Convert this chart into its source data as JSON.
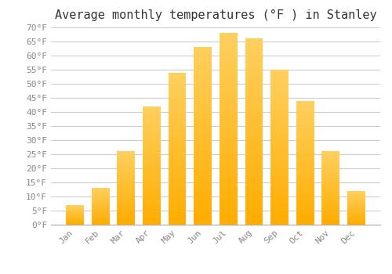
{
  "title": "Average monthly temperatures (°F ) in Stanley",
  "months": [
    "Jan",
    "Feb",
    "Mar",
    "Apr",
    "May",
    "Jun",
    "Jul",
    "Aug",
    "Sep",
    "Oct",
    "Nov",
    "Dec"
  ],
  "values": [
    7,
    13,
    26,
    42,
    54,
    63,
    68,
    66,
    55,
    44,
    26,
    12
  ],
  "bar_color": "#FFAD00",
  "bar_color_light": "#FFD060",
  "ylim": [
    0,
    70
  ],
  "yticks": [
    0,
    5,
    10,
    15,
    20,
    25,
    30,
    35,
    40,
    45,
    50,
    55,
    60,
    65,
    70
  ],
  "ytick_labels": [
    "0°F",
    "5°F",
    "10°F",
    "15°F",
    "20°F",
    "25°F",
    "30°F",
    "35°F",
    "40°F",
    "45°F",
    "50°F",
    "55°F",
    "60°F",
    "65°F",
    "70°F"
  ],
  "background_color": "#ffffff",
  "grid_color": "#cccccc",
  "title_fontsize": 11,
  "tick_fontsize": 8,
  "bar_width": 0.7
}
